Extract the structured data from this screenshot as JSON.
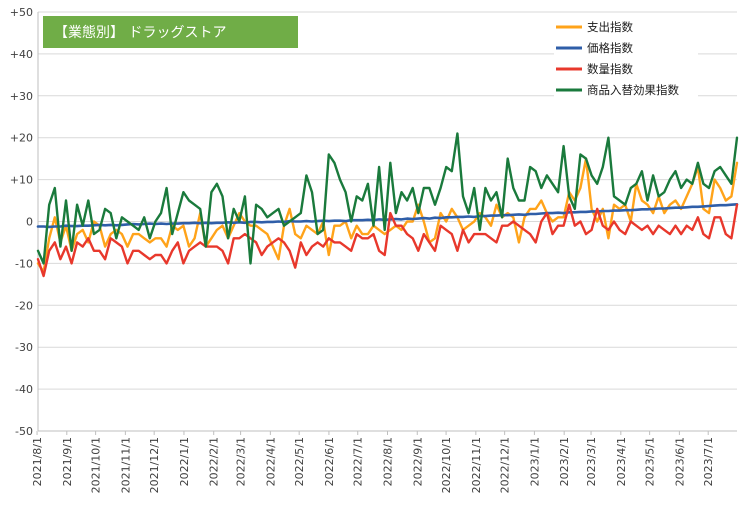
{
  "chart_data": {
    "type": "line",
    "title": "【業態別】 ドラッグストア",
    "xlabel": "",
    "ylabel": "",
    "ylim": [
      -50,
      50
    ],
    "y_ticks": [
      "+50",
      "+40",
      "+30",
      "+20",
      "+10",
      "0",
      "-10",
      "-20",
      "-30",
      "-40",
      "-50"
    ],
    "x_start": "2021-08-02",
    "x_end": "2023-07-31",
    "x_tick_labels": [
      "2021/8/1",
      "2021/9/1",
      "2021/10/1",
      "2021/11/1",
      "2021/12/1",
      "2022/1/1",
      "2022/2/1",
      "2022/3/1",
      "2022/4/1",
      "2022/5/1",
      "2022/6/1",
      "2022/7/1",
      "2022/8/1",
      "2022/9/1",
      "2022/10/1",
      "2022/11/1",
      "2022/12/1",
      "2023/1/1",
      "2023/2/1",
      "2023/3/1",
      "2023/4/1",
      "2023/5/1",
      "2023/6/1",
      "2023/7/1"
    ],
    "grid": "horizontal",
    "legend_position": "top-right",
    "title_box_color": "#70ad47",
    "series": [
      {
        "name": "支出指数",
        "color": "#ffa31a",
        "values": [
          -10,
          -12,
          -4,
          1,
          -5,
          -1,
          -7,
          -3,
          -2,
          -5,
          0,
          -1,
          -6,
          -3,
          -2,
          -3,
          -6,
          -3,
          -3,
          -4,
          -5,
          -4,
          -4,
          -6,
          -1,
          -2,
          -1,
          -6,
          -4,
          2,
          -6,
          -4,
          -2,
          -1,
          -4,
          -1,
          2,
          0,
          -1,
          -1,
          -2,
          -3,
          -6,
          -9,
          -1,
          3,
          -3,
          -4,
          -1,
          -2,
          -3,
          0,
          -8,
          -1,
          -1,
          0,
          -4,
          -1,
          -3,
          -3,
          -1,
          -2,
          -3,
          -2,
          -1,
          -2,
          0,
          0,
          4,
          0,
          -5,
          -4,
          2,
          0,
          3,
          1,
          -2,
          -1,
          0,
          2,
          1,
          -1,
          4,
          1,
          2,
          1,
          -5,
          1,
          3,
          3,
          5,
          2,
          0,
          1,
          1,
          7,
          5,
          8,
          15,
          3,
          0,
          3,
          -4,
          4,
          3,
          4,
          0,
          9,
          5,
          4,
          2,
          6,
          2,
          4,
          5,
          3,
          6,
          9,
          13,
          3,
          2,
          10,
          8,
          5,
          6,
          14
        ]
      },
      {
        "name": "価格指数",
        "color": "#2f5ea8",
        "values": [
          -1.2,
          -1.2,
          -1.3,
          -1.2,
          -1.2,
          -1.0,
          -1.1,
          -1.1,
          -1.0,
          -1.0,
          -0.9,
          -0.8,
          -0.9,
          -0.8,
          -0.9,
          -0.8,
          -0.7,
          -0.6,
          -0.7,
          -0.6,
          -0.5,
          -0.6,
          -0.5,
          -0.6,
          -0.5,
          -0.5,
          -0.4,
          -0.4,
          -0.3,
          -0.4,
          -0.3,
          -0.4,
          -0.3,
          -0.3,
          -0.2,
          -0.3,
          -0.2,
          -0.3,
          -0.1,
          -0.1,
          -0.2,
          -0.1,
          -0.1,
          0.0,
          -0.1,
          0.1,
          0.0,
          0.0,
          0.1,
          0.0,
          0.1,
          0.2,
          0.1,
          0.2,
          0.2,
          0.1,
          0.3,
          0.3,
          0.3,
          0.4,
          0.3,
          0.5,
          0.4,
          0.5,
          0.6,
          0.5,
          0.7,
          0.6,
          0.7,
          0.8,
          0.7,
          0.9,
          0.8,
          1.0,
          1.0,
          1.1,
          1.1,
          1.2,
          1.1,
          1.3,
          1.3,
          1.4,
          1.4,
          1.5,
          1.5,
          1.6,
          1.7,
          1.6,
          1.8,
          1.8,
          1.9,
          2.0,
          2.0,
          2.1,
          2.0,
          2.2,
          2.2,
          2.3,
          2.3,
          2.4,
          2.4,
          2.5,
          2.5,
          2.6,
          2.6,
          2.7,
          2.7,
          2.8,
          2.9,
          2.9,
          3.0,
          3.1,
          3.1,
          3.2,
          3.3,
          3.3,
          3.4,
          3.5,
          3.5,
          3.6,
          3.7,
          3.8,
          3.9,
          3.9,
          4.0,
          4.1
        ]
      },
      {
        "name": "数量指数",
        "color": "#e8382c",
        "values": [
          -9,
          -13,
          -7,
          -5,
          -9,
          -6,
          -10,
          -5,
          -6,
          -4,
          -7,
          -7,
          -9,
          -4,
          -5,
          -6,
          -10,
          -7,
          -7,
          -8,
          -9,
          -8,
          -8,
          -10,
          -7,
          -5,
          -10,
          -7,
          -6,
          -5,
          -6,
          -6,
          -6,
          -7,
          -10,
          -4,
          -4,
          -3,
          -4,
          -5,
          -8,
          -6,
          -5,
          -4,
          -5,
          -7,
          -11,
          -5,
          -8,
          -6,
          -5,
          -6,
          -4,
          -5,
          -5,
          -6,
          -7,
          -3,
          -4,
          -4,
          -3,
          -7,
          -8,
          2,
          -1,
          -1,
          -3,
          -4,
          -7,
          -3,
          -5,
          -7,
          -1,
          -2,
          -3,
          -7,
          -2,
          -5,
          -3,
          -3,
          -3,
          -4,
          -5,
          -1,
          -1,
          0,
          -1,
          -2,
          -3,
          -5,
          0,
          2,
          -3,
          -1,
          -1,
          4,
          -1,
          0,
          -3,
          -2,
          3,
          -1,
          -2,
          0,
          -2,
          -3,
          0,
          -1,
          -2,
          -1,
          -3,
          -1,
          -2,
          -3,
          -1,
          -3,
          -1,
          -2,
          1,
          -3,
          -4,
          1,
          1,
          -3,
          -4,
          4
        ]
      },
      {
        "name": "商品入替効果指数",
        "color": "#1a7a3c",
        "values": [
          -7,
          -10,
          4,
          8,
          -6,
          5,
          -7,
          4,
          -1,
          5,
          -3,
          -2,
          3,
          2,
          -4,
          1,
          0,
          -1,
          -2,
          1,
          -4,
          0,
          2,
          8,
          -3,
          2,
          7,
          5,
          4,
          3,
          -6,
          7,
          9,
          6,
          -4,
          3,
          0,
          6,
          -10,
          4,
          3,
          1,
          2,
          3,
          -1,
          0,
          1,
          2,
          11,
          7,
          -3,
          -2,
          16,
          14,
          10,
          7,
          0,
          6,
          5,
          9,
          -1,
          13,
          -2,
          14,
          2,
          7,
          5,
          8,
          2,
          8,
          8,
          4,
          8,
          13,
          12,
          21,
          6,
          2,
          8,
          -2,
          8,
          5,
          7,
          1,
          15,
          8,
          5,
          5,
          13,
          12,
          8,
          11,
          9,
          7,
          18,
          6,
          3,
          16,
          15,
          11,
          9,
          13,
          20,
          6,
          5,
          4,
          8,
          9,
          12,
          5,
          11,
          6,
          7,
          10,
          12,
          8,
          10,
          9,
          14,
          9,
          8,
          12,
          13,
          11,
          9,
          20
        ]
      }
    ]
  }
}
